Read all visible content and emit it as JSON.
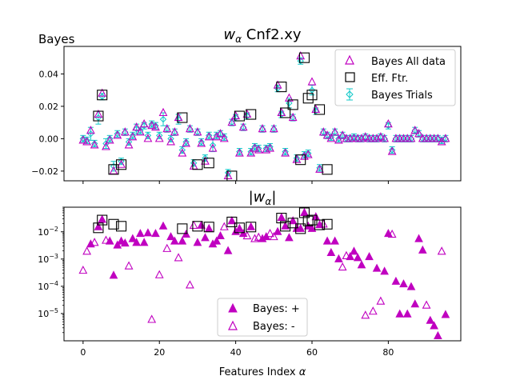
{
  "chart_data": [
    {
      "type": "scatter",
      "title": "w_α Cnf2.xy",
      "title_prefix": "w",
      "title_sub": "α",
      "title_suffix": " Cnf2.xy",
      "corner_label": "Bayes",
      "xlabel": "",
      "ylabel": "",
      "xlim": [
        -5,
        99
      ],
      "ylim": [
        -0.026,
        0.057
      ],
      "grid": false,
      "legend_position": "top-right",
      "x_ticks": [
        0,
        20,
        40,
        60,
        80
      ],
      "y_ticks": [
        -0.02,
        0.0,
        0.02,
        0.04
      ],
      "y_tick_labels": [
        "−0.02",
        "0.00",
        "0.02",
        "0.04"
      ],
      "series": [
        {
          "name": "Bayes All data",
          "marker": "open-triangle",
          "color": "#c000c0",
          "x": [
            0,
            1,
            2,
            3,
            4,
            5,
            6,
            7,
            8,
            9,
            10,
            11,
            12,
            13,
            14,
            15,
            16,
            17,
            18,
            19,
            20,
            21,
            22,
            23,
            24,
            25,
            26,
            27,
            28,
            29,
            30,
            31,
            32,
            33,
            34,
            35,
            36,
            37,
            38,
            39,
            40,
            41,
            42,
            43,
            44,
            45,
            46,
            47,
            48,
            49,
            50,
            51,
            52,
            53,
            54,
            55,
            56,
            57,
            58,
            59,
            60,
            61,
            62,
            63,
            64,
            65,
            66,
            67,
            68,
            69,
            70,
            71,
            72,
            73,
            74,
            75,
            76,
            77,
            78,
            79,
            80,
            81,
            82,
            83,
            84,
            85,
            86,
            87,
            88,
            89,
            90,
            91,
            92,
            93,
            94,
            95
          ],
          "y": [
            -0.001,
            -0.002,
            0.005,
            -0.004,
            0.015,
            0.028,
            -0.005,
            -0.001,
            -0.02,
            0.002,
            -0.016,
            0.004,
            -0.004,
            0.001,
            0.007,
            0.004,
            0.009,
            0.0,
            0.008,
            0.007,
            0.0,
            0.016,
            0.006,
            -0.002,
            0.004,
            0.013,
            -0.009,
            -0.003,
            0.006,
            -0.017,
            0.004,
            -0.003,
            -0.014,
            0.001,
            -0.006,
            0.001,
            0.003,
            0.0,
            -0.023,
            0.01,
            0.014,
            -0.009,
            0.007,
            0.015,
            -0.009,
            -0.006,
            -0.007,
            0.006,
            -0.007,
            -0.006,
            0.006,
            0.033,
            0.016,
            -0.009,
            0.025,
            0.013,
            -0.013,
            0.051,
            -0.011,
            -0.01,
            0.035,
            0.018,
            -0.019,
            0.004,
            0.002,
            0.0,
            0.004,
            -0.001,
            0.002,
            0.0,
            0.0,
            0.0,
            0.0,
            0.0,
            0.001,
            0.0,
            0.0,
            0.0,
            0.001,
            0.0,
            0.009,
            -0.008,
            0.0,
            0.0,
            0.0,
            0.0,
            0.0,
            0.005,
            0.003,
            0.0,
            0.0,
            0.0,
            0.0,
            0.0,
            -0.002,
            0.0
          ]
        },
        {
          "name": "Eff. Ftr.",
          "marker": "open-square",
          "color": "#000000",
          "x": [
            4,
            5,
            8,
            10,
            26,
            30,
            33,
            39,
            41,
            44,
            52,
            53,
            55,
            57,
            58,
            59,
            60,
            62,
            64
          ],
          "y": [
            0.014,
            0.027,
            -0.019,
            -0.016,
            0.013,
            -0.016,
            -0.015,
            -0.023,
            0.014,
            0.015,
            0.032,
            0.016,
            0.021,
            -0.013,
            0.05,
            0.025,
            0.027,
            0.018,
            -0.019
          ]
        },
        {
          "name": "Bayes Trials",
          "marker": "diamond-errorbar",
          "color": "#10c8c8",
          "x": [
            0,
            1,
            2,
            3,
            4,
            5,
            6,
            7,
            8,
            9,
            10,
            11,
            12,
            13,
            14,
            15,
            16,
            17,
            18,
            19,
            20,
            21,
            22,
            23,
            24,
            25,
            26,
            27,
            28,
            29,
            30,
            31,
            32,
            33,
            34,
            35,
            36,
            37,
            38,
            39,
            40,
            41,
            42,
            43,
            44,
            45,
            46,
            47,
            48,
            49,
            50,
            51,
            52,
            53,
            54,
            55,
            56,
            57,
            58,
            59,
            60,
            61,
            62,
            63,
            64,
            65,
            66,
            67,
            68,
            69,
            70,
            71,
            72,
            73,
            74,
            75,
            76,
            77,
            78,
            79,
            80,
            81,
            82,
            83,
            84,
            85,
            86,
            87,
            88,
            89,
            90,
            91,
            92,
            93,
            94,
            95
          ],
          "y": [
            0.0,
            -0.001,
            0.003,
            -0.003,
            0.013,
            0.026,
            -0.003,
            0.0,
            -0.017,
            0.003,
            -0.014,
            0.004,
            -0.002,
            0.002,
            0.006,
            0.005,
            0.008,
            0.002,
            0.009,
            0.008,
            0.002,
            0.012,
            0.006,
            0.0,
            0.004,
            0.012,
            -0.007,
            -0.002,
            0.006,
            -0.015,
            0.004,
            -0.002,
            -0.012,
            0.002,
            -0.004,
            0.002,
            0.003,
            0.001,
            -0.021,
            0.01,
            0.013,
            -0.008,
            0.007,
            0.014,
            -0.008,
            -0.005,
            -0.006,
            0.006,
            -0.006,
            -0.005,
            0.006,
            0.031,
            0.015,
            -0.008,
            0.022,
            0.013,
            -0.012,
            0.048,
            -0.01,
            -0.009,
            0.03,
            0.017,
            -0.018,
            0.004,
            0.002,
            0.001,
            0.004,
            0.0,
            0.002,
            0.0,
            0.0,
            0.001,
            0.0,
            0.0,
            0.001,
            0.0,
            0.0,
            0.0,
            0.001,
            0.0,
            0.008,
            -0.007,
            0.0,
            0.0,
            0.0,
            0.0,
            0.0,
            0.005,
            0.003,
            0.0,
            0.0,
            0.0,
            0.0,
            0.0,
            -0.001,
            0.0
          ],
          "err": [
            0.002,
            0.002,
            0.004,
            0.002,
            0.004,
            0.002,
            0.003,
            0.002,
            0.003,
            0.002,
            0.002,
            0.002,
            0.002,
            0.002,
            0.003,
            0.002,
            0.002,
            0.002,
            0.002,
            0.002,
            0.002,
            0.004,
            0.002,
            0.002,
            0.002,
            0.003,
            0.002,
            0.002,
            0.002,
            0.002,
            0.002,
            0.002,
            0.002,
            0.002,
            0.004,
            0.002,
            0.002,
            0.002,
            0.002,
            0.002,
            0.002,
            0.002,
            0.002,
            0.002,
            0.002,
            0.002,
            0.002,
            0.002,
            0.002,
            0.002,
            0.002,
            0.002,
            0.002,
            0.002,
            0.003,
            0.002,
            0.002,
            0.002,
            0.002,
            0.002,
            0.003,
            0.002,
            0.002,
            0.002,
            0.002,
            0.002,
            0.002,
            0.002,
            0.002,
            0.002,
            0.002,
            0.002,
            0.002,
            0.002,
            0.002,
            0.002,
            0.002,
            0.002,
            0.002,
            0.002,
            0.002,
            0.002,
            0.002,
            0.002,
            0.002,
            0.002,
            0.002,
            0.002,
            0.002,
            0.002,
            0.002,
            0.002,
            0.002,
            0.002,
            0.002,
            0.002
          ]
        }
      ]
    },
    {
      "type": "scatter",
      "title": "|w_α|",
      "title_prefix": "|w",
      "title_sub": "α",
      "title_suffix": "|",
      "xlabel": "Features Index α",
      "xlabel_prefix": "Features Index ",
      "xlabel_italic": "α",
      "ylabel": "",
      "xlim": [
        -5,
        99
      ],
      "ylim": [
        1e-06,
        0.08
      ],
      "y_scale": "log",
      "grid": false,
      "legend_position": "bottom-center",
      "x_ticks": [
        0,
        20,
        40,
        60,
        80
      ],
      "y_tick_exps": [
        -5,
        -4,
        -3,
        -2
      ],
      "y_tick_base": "10",
      "series": [
        {
          "name": "Bayes: +",
          "marker": "filled-triangle",
          "color": "#c000c0",
          "x": [
            2,
            4,
            5,
            7,
            8,
            9,
            10,
            11,
            13,
            14,
            15,
            16,
            17,
            19,
            21,
            23,
            24,
            26,
            27,
            30,
            31,
            32,
            33,
            34,
            35,
            36,
            38,
            39,
            40,
            41,
            42,
            44,
            47,
            48,
            51,
            52,
            53,
            54,
            55,
            56,
            57,
            58,
            59,
            60,
            61,
            62,
            64,
            65,
            66,
            67,
            70,
            71,
            72,
            73,
            75,
            77,
            79,
            80,
            82,
            83,
            84,
            85,
            86,
            87,
            88,
            89,
            91,
            92,
            93,
            95
          ],
          "y": [
            0.0035,
            0.015,
            0.028,
            0.0045,
            0.00025,
            0.0032,
            0.0045,
            0.0038,
            0.0055,
            0.004,
            0.0085,
            0.004,
            0.009,
            0.0085,
            0.016,
            0.0065,
            0.0045,
            0.0045,
            0.008,
            0.004,
            0.017,
            0.006,
            0.013,
            0.0035,
            0.0045,
            0.007,
            0.002,
            0.025,
            0.01,
            0.013,
            0.0085,
            0.015,
            0.0055,
            0.0065,
            0.01,
            0.033,
            0.016,
            0.006,
            0.025,
            0.013,
            0.013,
            0.05,
            0.016,
            0.013,
            0.035,
            0.018,
            0.0045,
            0.0017,
            0.0045,
            0.001,
            0.0012,
            0.0019,
            0.0011,
            0.0006,
            0.0012,
            0.00045,
            0.00035,
            0.0085,
            0.00015,
            9.5e-06,
            0.00012,
            9.5e-06,
            9.5e-05,
            2.2e-05,
            0.0055,
            0.0021,
            5.5e-06,
            3.5e-06,
            1.5e-06,
            9e-06
          ]
        },
        {
          "name": "Bayes: -",
          "marker": "open-triangle",
          "color": "#c000c0",
          "x": [
            0,
            1,
            3,
            6,
            12,
            18,
            20,
            22,
            25,
            28,
            29,
            37,
            43,
            45,
            46,
            49,
            50,
            63,
            68,
            69,
            74,
            76,
            78,
            81,
            90,
            94
          ],
          "y": [
            0.00038,
            0.0019,
            0.004,
            0.0048,
            0.00055,
            6e-06,
            0.00026,
            0.0024,
            0.0011,
            0.00011,
            0.017,
            0.015,
            0.007,
            0.0055,
            0.0062,
            0.0085,
            0.0065,
            0.019,
            0.0005,
            0.0013,
            8.5e-06,
            1.2e-05,
            2.8e-05,
            0.008,
            2e-05,
            0.0019
          ]
        }
      ],
      "effective_features": {
        "name": "Eff. Ftr.",
        "marker": "open-square",
        "color": "#000000",
        "x": [
          4,
          5,
          8,
          10,
          26,
          30,
          33,
          39,
          41,
          44,
          52,
          53,
          55,
          57,
          58,
          59,
          60,
          62,
          64
        ],
        "y": [
          0.014,
          0.027,
          0.019,
          0.016,
          0.013,
          0.016,
          0.015,
          0.023,
          0.014,
          0.015,
          0.032,
          0.016,
          0.021,
          0.013,
          0.05,
          0.025,
          0.027,
          0.018,
          0.019
        ]
      }
    }
  ]
}
